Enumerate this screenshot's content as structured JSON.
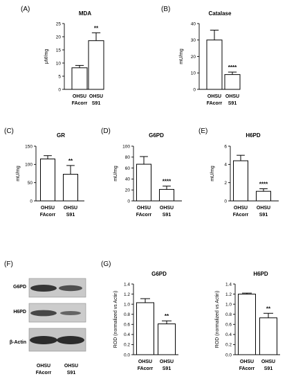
{
  "panel_letters": [
    "(A)",
    "(B)",
    "(C)",
    "(D)",
    "(E)",
    "(F)",
    "(G)"
  ],
  "western_blot": {
    "rows": [
      "G6PD",
      "H6PD",
      "β-Actin"
    ],
    "lanes": [
      [
        "OHSU",
        "FAcorr"
      ],
      [
        "OHSU",
        "S91"
      ]
    ]
  },
  "chart_data": [
    {
      "type": "bar",
      "title": "MDA",
      "ylabel": "μM/mg",
      "xlabel": "",
      "categories": [
        [
          "OHSU",
          "FAcorr"
        ],
        [
          "OHSU",
          "S91"
        ]
      ],
      "values": [
        8.2,
        18.5
      ],
      "errors": [
        0.9,
        3.0
      ],
      "significance": [
        "",
        "**"
      ],
      "ylim": [
        0,
        25
      ],
      "yticks": [
        "0",
        "5",
        "10",
        "15",
        "20",
        "25"
      ]
    },
    {
      "type": "bar",
      "title": "Catalase",
      "ylabel": "mU/mg",
      "xlabel": "",
      "categories": [
        [
          "OHSU",
          "FAcorr"
        ],
        [
          "OHSU",
          "S91"
        ]
      ],
      "values": [
        30,
        9
      ],
      "errors": [
        6,
        1.5
      ],
      "significance": [
        "",
        "****"
      ],
      "ylim": [
        0,
        40
      ],
      "yticks": [
        "0",
        "10",
        "20",
        "30",
        "40"
      ]
    },
    {
      "type": "bar",
      "title": "GR",
      "ylabel": "mU/mg",
      "xlabel": "",
      "categories": [
        [
          "OHSU",
          "FAcorr"
        ],
        [
          "OHSU",
          "S91"
        ]
      ],
      "values": [
        115,
        73
      ],
      "errors": [
        9,
        24
      ],
      "significance": [
        "",
        "**"
      ],
      "ylim": [
        0,
        150
      ],
      "yticks": [
        "0",
        "50",
        "100",
        "150"
      ]
    },
    {
      "type": "bar",
      "title": "G6PD",
      "ylabel": "mU/mg",
      "xlabel": "",
      "categories": [
        [
          "OHSU",
          "FAcorr"
        ],
        [
          "OHSU",
          "S91"
        ]
      ],
      "values": [
        67,
        21
      ],
      "errors": [
        14,
        6
      ],
      "significance": [
        "",
        "****"
      ],
      "ylim": [
        0,
        100
      ],
      "yticks": [
        "0",
        "20",
        "40",
        "60",
        "80",
        "100"
      ]
    },
    {
      "type": "bar",
      "title": "H6PD",
      "ylabel": "mU/mg",
      "xlabel": "",
      "categories": [
        [
          "OHSU",
          "FAcorr"
        ],
        [
          "OHSU",
          "S91"
        ]
      ],
      "values": [
        4.4,
        1.05
      ],
      "errors": [
        0.6,
        0.28
      ],
      "significance": [
        "",
        "****"
      ],
      "ylim": [
        0,
        6
      ],
      "yticks": [
        "0",
        "2",
        "4",
        "6"
      ]
    },
    {
      "type": "bar",
      "title": "G6PD",
      "ylabel": "ROD (normalized vs Actin)",
      "xlabel": "",
      "categories": [
        [
          "OHSU",
          "FAcorr"
        ],
        [
          "OHSU",
          "S91"
        ]
      ],
      "values": [
        1.03,
        0.61
      ],
      "errors": [
        0.08,
        0.06
      ],
      "significance": [
        "",
        "**"
      ],
      "ylim": [
        0,
        1.4
      ],
      "yticks": [
        "0.0",
        "0.2",
        "0.4",
        "0.6",
        "0.8",
        "1.0",
        "1.2",
        "1.4"
      ]
    },
    {
      "type": "bar",
      "title": "H6PD",
      "ylabel": "ROD (normalized vs Actin)",
      "xlabel": "",
      "categories": [
        [
          "OHSU",
          "FAcorr"
        ],
        [
          "OHSU",
          "S91"
        ]
      ],
      "values": [
        1.2,
        0.73
      ],
      "errors": [
        0.02,
        0.09
      ],
      "significance": [
        "",
        "**"
      ],
      "ylim": [
        0,
        1.4
      ],
      "yticks": [
        "0.0",
        "0.2",
        "0.4",
        "0.6",
        "0.8",
        "1.0",
        "1.2",
        "1.4"
      ]
    }
  ]
}
